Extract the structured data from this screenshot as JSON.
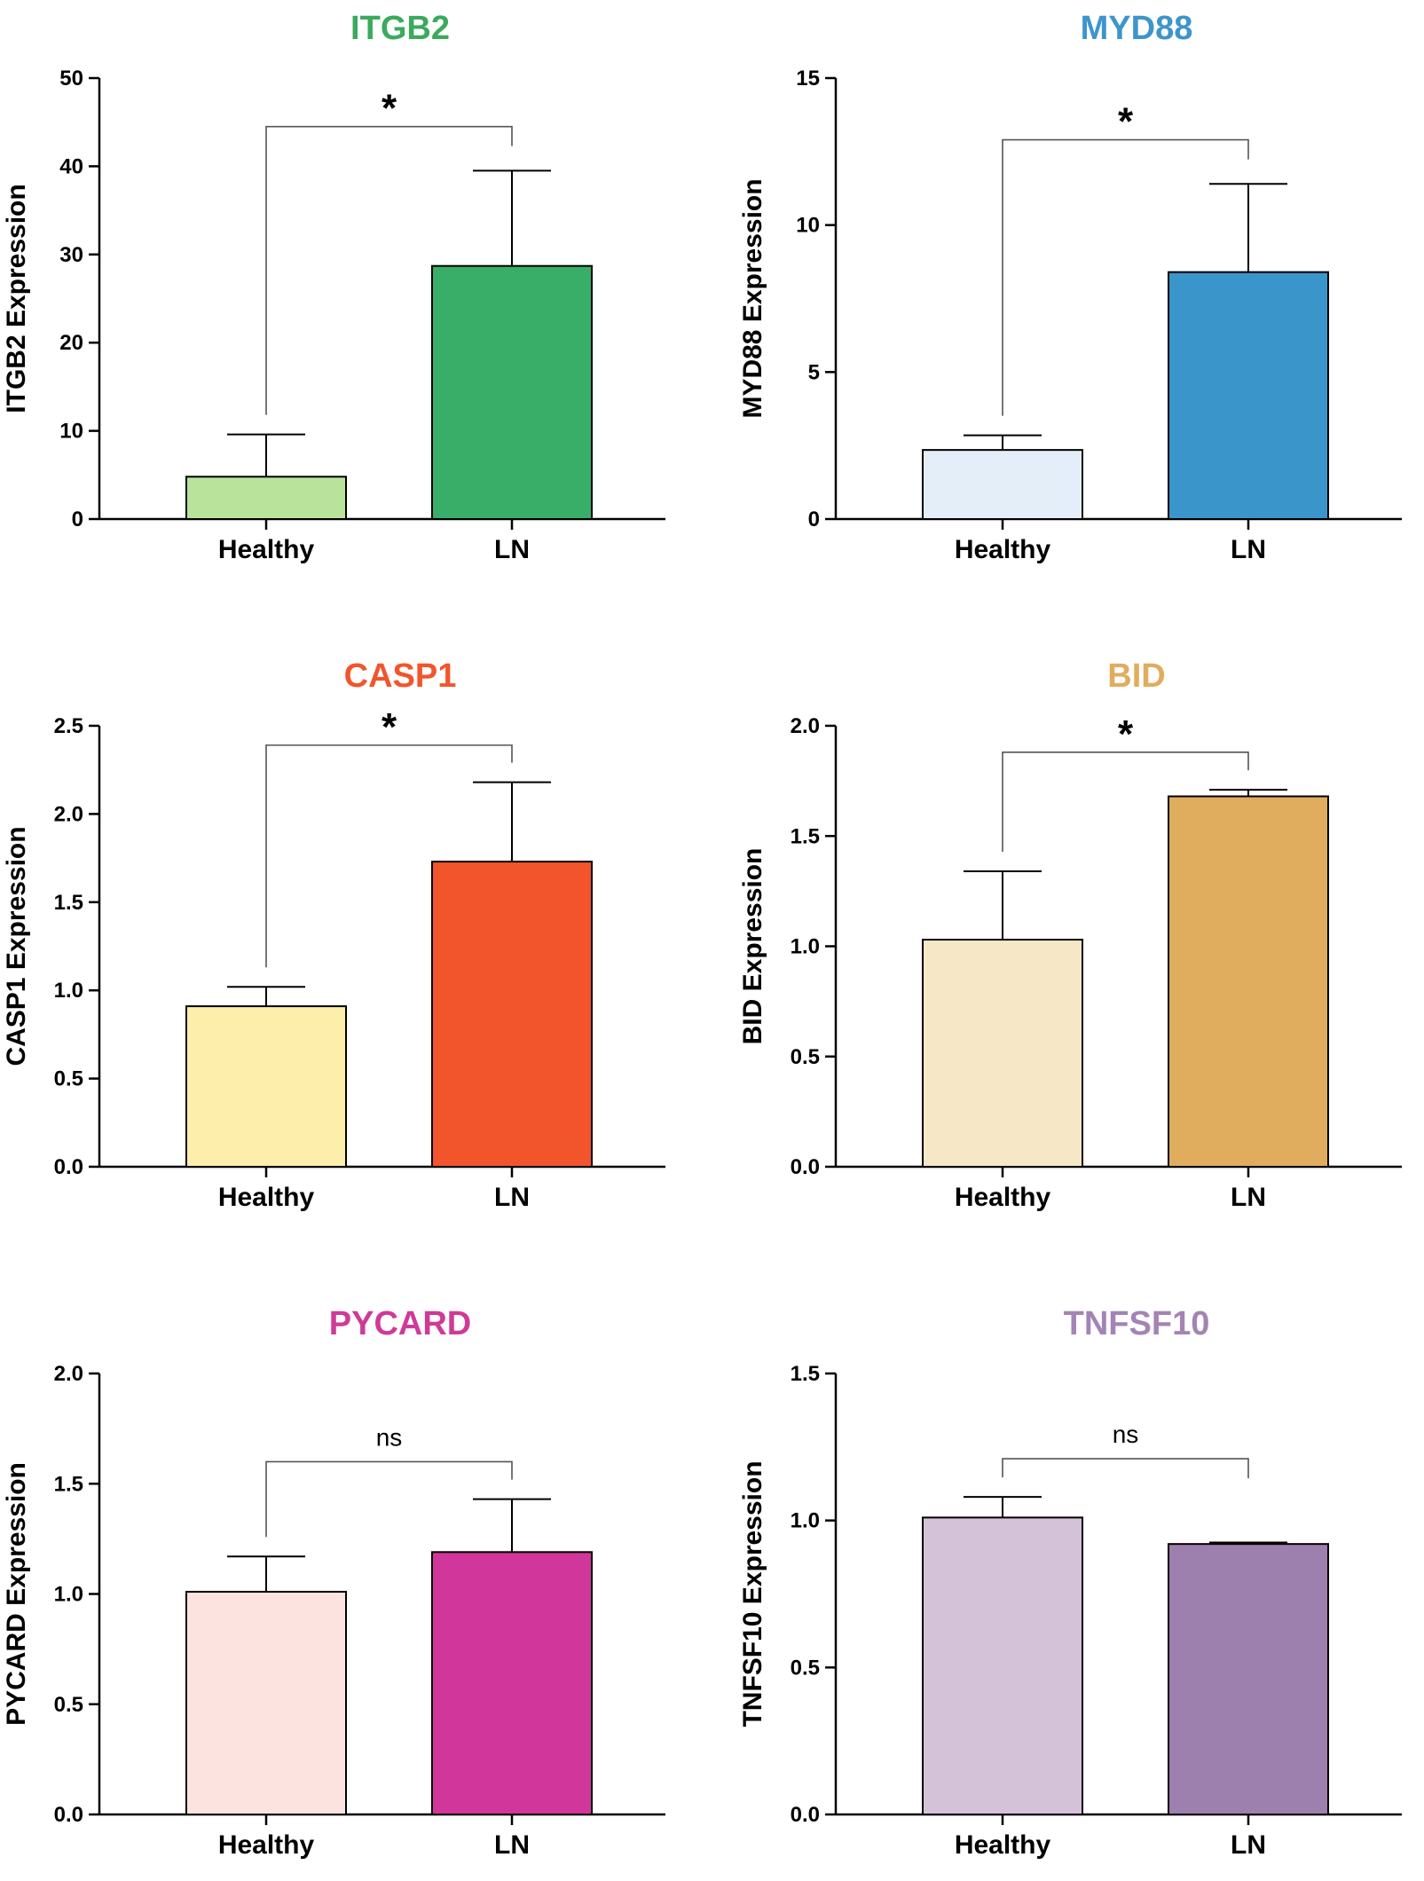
{
  "chart_data": [
    {
      "type": "bar",
      "title": "ITGB2",
      "title_color": "#3aaa5c",
      "ylabel": "ITGB2 Expression",
      "xlabel": "",
      "categories": [
        "Healthy",
        "LN"
      ],
      "values": [
        4.8,
        28.7
      ],
      "errors": [
        4.8,
        10.8
      ],
      "colors": [
        "#b9e29b",
        "#38ae68"
      ],
      "ylim": [
        0,
        50
      ],
      "yticks": [
        0,
        10,
        20,
        30,
        40,
        50
      ],
      "ytick_labels": [
        "0",
        "10",
        "20",
        "30",
        "40",
        "50"
      ],
      "significance": "*",
      "bracket_y": 44.5
    },
    {
      "type": "bar",
      "title": "MYD88",
      "title_color": "#3d95cc",
      "ylabel": "MYD88 Expression",
      "xlabel": "",
      "categories": [
        "Healthy",
        "LN"
      ],
      "values": [
        2.35,
        8.4
      ],
      "errors": [
        0.5,
        3.0
      ],
      "colors": [
        "#e4eef8",
        "#3a95cb"
      ],
      "ylim": [
        0,
        15
      ],
      "yticks": [
        0,
        5,
        10,
        15
      ],
      "ytick_labels": [
        "0",
        "5",
        "10",
        "15"
      ],
      "significance": "*",
      "bracket_y": 12.9
    },
    {
      "type": "bar",
      "title": "CASP1",
      "title_color": "#f2552c",
      "ylabel": "CASP1 Expression",
      "xlabel": "",
      "categories": [
        "Healthy",
        "LN"
      ],
      "values": [
        0.91,
        1.73
      ],
      "errors": [
        0.11,
        0.45
      ],
      "colors": [
        "#fdeeac",
        "#f2552c"
      ],
      "ylim": [
        0,
        2.5
      ],
      "yticks": [
        0,
        0.5,
        1.0,
        1.5,
        2.0,
        2.5
      ],
      "ytick_labels": [
        "0.0",
        "0.5",
        "1.0",
        "1.5",
        "2.0",
        "2.5"
      ],
      "significance": "*",
      "bracket_y": 2.39
    },
    {
      "type": "bar",
      "title": "BID",
      "title_color": "#e0ad5e",
      "ylabel": "BID Expression",
      "xlabel": "",
      "categories": [
        "Healthy",
        "LN"
      ],
      "values": [
        1.03,
        1.68
      ],
      "errors": [
        0.31,
        0.03
      ],
      "colors": [
        "#f6e8c6",
        "#e0ad5e"
      ],
      "ylim": [
        0,
        2.0
      ],
      "yticks": [
        0,
        0.5,
        1.0,
        1.5,
        2.0
      ],
      "ytick_labels": [
        "0.0",
        "0.5",
        "1.0",
        "1.5",
        "2.0"
      ],
      "significance": "*",
      "bracket_y": 1.88
    },
    {
      "type": "bar",
      "title": "PYCARD",
      "title_color": "#cf3a97",
      "ylabel": "PYCARD Expression",
      "xlabel": "",
      "categories": [
        "Healthy",
        "LN"
      ],
      "values": [
        1.01,
        1.19
      ],
      "errors": [
        0.16,
        0.24
      ],
      "colors": [
        "#fde3e0",
        "#d1379a"
      ],
      "ylim": [
        0,
        2.0
      ],
      "yticks": [
        0,
        0.5,
        1.0,
        1.5,
        2.0
      ],
      "ytick_labels": [
        "0.0",
        "0.5",
        "1.0",
        "1.5",
        "2.0"
      ],
      "significance": "ns",
      "bracket_y": 1.6
    },
    {
      "type": "bar",
      "title": "TNFSF10",
      "title_color": "#a384b4",
      "ylabel": "TNFSF10  Expression",
      "xlabel": "",
      "categories": [
        "Healthy",
        "LN"
      ],
      "values": [
        1.01,
        0.92
      ],
      "errors": [
        0.07,
        0.005
      ],
      "colors": [
        "#d4c2d8",
        "#9d80ae"
      ],
      "ylim": [
        0,
        1.5
      ],
      "yticks": [
        0,
        0.5,
        1.0,
        1.5
      ],
      "ytick_labels": [
        "0.0",
        "0.5",
        "1.0",
        "1.5"
      ],
      "significance": "ns",
      "bracket_y": 1.21
    }
  ]
}
